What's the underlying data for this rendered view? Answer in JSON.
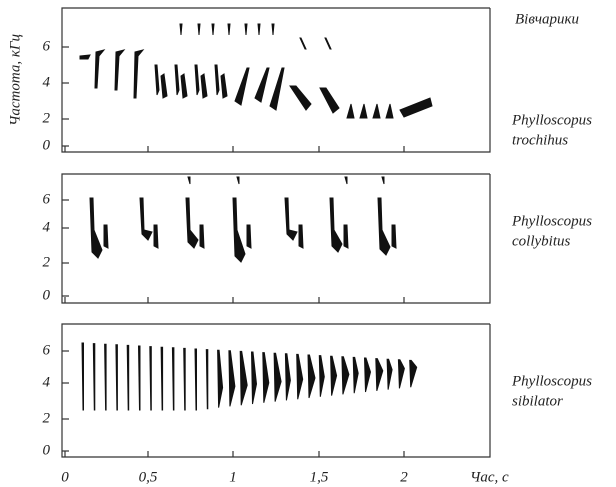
{
  "axes": {
    "y_label": "Частота, кГц",
    "x_label": "Час, с",
    "x_ticks": [
      "0",
      "0,5",
      "1",
      "1,5",
      "2"
    ]
  },
  "panels": [
    {
      "labels": [
        "Вівчарики",
        "Phylloscopus",
        "trochihus"
      ],
      "y_ticks": [
        "0",
        "2",
        "4",
        "6"
      ]
    },
    {
      "labels": [
        "Phylloscopus",
        "collybitus"
      ],
      "y_ticks": [
        "0",
        "2",
        "4",
        "6"
      ]
    },
    {
      "labels": [
        "Phylloscopus",
        "sibilator"
      ],
      "y_ticks": [
        "0",
        "2",
        "4",
        "6"
      ]
    }
  ]
}
